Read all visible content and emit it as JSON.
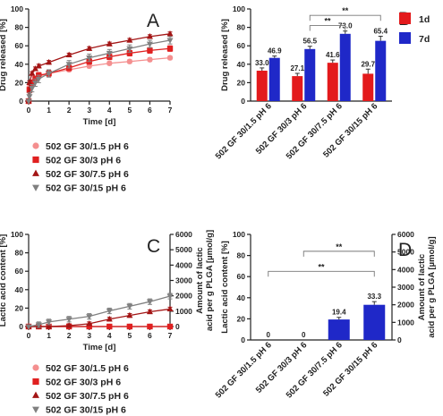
{
  "colors": {
    "c1.5": "#f48f8f",
    "c3": "#e02020",
    "c7.5": "#a31515",
    "c15": "#808080",
    "bar1d": "#e31a1c",
    "bar7d": "#1f28c8"
  },
  "legend_bottom_left": [
    {
      "label": "502 GF 30/1.5 pH 6",
      "marker": "circle",
      "color": "#f48f8f"
    },
    {
      "label": "502 GF 30/3 pH 6",
      "marker": "square",
      "color": "#e02020"
    },
    {
      "label": "502 GF 30/7.5 pH 6",
      "marker": "triangle-up",
      "color": "#a31515"
    },
    {
      "label": "502 GF 30/15 pH 6",
      "marker": "triangle-down",
      "color": "#808080"
    }
  ],
  "chart_data": [
    {
      "panel": "A",
      "type": "line",
      "xlabel": "Time [d]",
      "ylabel": "Drug released [%]",
      "xlim": [
        0,
        7
      ],
      "ylim": [
        0,
        100
      ],
      "xticks": [
        0,
        1,
        2,
        3,
        4,
        5,
        6,
        7
      ],
      "yticks": [
        0,
        20,
        40,
        60,
        80,
        100
      ],
      "x": [
        0,
        0.04,
        0.17,
        0.33,
        0.5,
        1,
        2,
        3,
        4,
        5,
        6,
        7
      ],
      "series": [
        {
          "name": "502 GF 30/1.5 pH 6",
          "key": "c1.5",
          "marker": "circle",
          "values": [
            0,
            15,
            20,
            24,
            27,
            30,
            34,
            38,
            41,
            43,
            45,
            47
          ],
          "err": 2
        },
        {
          "name": "502 GF 30/3 pH 6",
          "key": "c3",
          "marker": "square",
          "values": [
            0,
            12,
            20,
            24,
            28,
            30,
            36,
            43,
            48,
            52,
            55,
            57
          ],
          "err": 3
        },
        {
          "name": "502 GF 30/7.5 pH 6",
          "key": "c7.5",
          "marker": "triangle-up",
          "values": [
            0,
            20,
            30,
            35,
            38,
            42,
            50,
            57,
            62,
            66,
            70,
            73
          ],
          "err": 2
        },
        {
          "name": "502 GF 30/15 pH 6",
          "key": "c15",
          "marker": "triangle-down",
          "values": [
            0,
            5,
            14,
            20,
            24,
            30,
            40,
            47,
            52,
            57,
            62,
            66
          ],
          "err": 4
        }
      ]
    },
    {
      "panel": "B",
      "type": "bar",
      "ylabel": "Drug released [%]",
      "ylim": [
        0,
        100
      ],
      "yticks": [
        0,
        20,
        40,
        60,
        80,
        100
      ],
      "categories": [
        "502 GF 30/1.5 pH 6",
        "502 GF 30/3 pH 6",
        "502 GF 30/7.5 pH 6",
        "502 GF 30/15 pH 6"
      ],
      "series": [
        {
          "name": "1d",
          "key": "bar1d",
          "values": [
            33.0,
            27.1,
            41.6,
            29.7
          ],
          "err": [
            3,
            3,
            3,
            5
          ],
          "labels": [
            "33.0",
            "27.1",
            "41.6",
            "29.7"
          ]
        },
        {
          "name": "7d",
          "key": "bar7d",
          "values": [
            46.9,
            56.5,
            73.0,
            65.4
          ],
          "err": [
            2,
            3,
            3,
            5
          ],
          "labels": [
            "46.9",
            "56.5",
            "73.0",
            "65.4"
          ]
        }
      ],
      "significance": [
        {
          "from": 1,
          "to": 3,
          "label": "**",
          "y": 93
        },
        {
          "from": 1,
          "to": 2,
          "label": "**",
          "y": 82
        }
      ],
      "legend_position": "top-right"
    },
    {
      "panel": "C",
      "type": "line",
      "xlabel": "Time [d]",
      "ylabel": "Lactic acid content [%]",
      "y2label": "Amount of lactic acid per g PLGA [µmol/g]",
      "xlim": [
        0,
        7
      ],
      "ylim": [
        0,
        100
      ],
      "y2lim": [
        0,
        6000
      ],
      "xticks": [
        0,
        1,
        2,
        3,
        4,
        5,
        6,
        7
      ],
      "yticks": [
        0,
        20,
        40,
        60,
        80,
        100
      ],
      "y2ticks": [
        0,
        1000,
        2000,
        3000,
        4000,
        5000,
        6000
      ],
      "x": [
        0,
        0.5,
        1,
        2,
        3,
        4,
        5,
        6,
        7
      ],
      "series": [
        {
          "name": "502 GF 30/1.5 pH 6",
          "key": "c1.5",
          "marker": "circle",
          "values": [
            0,
            0,
            0,
            0,
            0,
            0,
            0,
            0,
            0
          ],
          "err": 0
        },
        {
          "name": "502 GF 30/3 pH 6",
          "key": "c3",
          "marker": "square",
          "values": [
            0,
            0,
            0,
            0,
            0,
            0,
            0,
            0,
            0
          ],
          "err": 0
        },
        {
          "name": "502 GF 30/7.5 pH 6",
          "key": "c7.5",
          "marker": "triangle-up",
          "values": [
            0,
            0,
            0,
            1,
            3,
            8,
            12,
            16,
            19
          ],
          "err": 2
        },
        {
          "name": "502 GF 30/15 pH 6",
          "key": "c15",
          "marker": "triangle-down",
          "values": [
            0,
            2,
            5,
            8,
            11,
            17,
            22,
            27,
            33
          ],
          "err": 3
        }
      ]
    },
    {
      "panel": "D",
      "type": "bar",
      "ylabel": "Lactic acid content [%]",
      "y2label": "Amount of lactic acid per g PLGA [µmol/g]",
      "ylim": [
        0,
        100
      ],
      "y2lim": [
        0,
        6000
      ],
      "yticks": [
        0,
        20,
        40,
        60,
        80,
        100
      ],
      "y2ticks": [
        0,
        1000,
        2000,
        3000,
        4000,
        5000,
        6000
      ],
      "categories": [
        "502 GF 30/1.5 pH 6",
        "502 GF 30/3 pH 6",
        "502 GF 30/7.5 pH 6",
        "502 GF 30/15 pH 6"
      ],
      "series": [
        {
          "name": "7d",
          "key": "bar7d",
          "values": [
            0,
            0,
            19.4,
            33.3
          ],
          "err": [
            0,
            0,
            2,
            3
          ],
          "labels": [
            "0",
            "0",
            "19.4",
            "33.3"
          ]
        }
      ],
      "significance": [
        {
          "from": 0,
          "to": 3,
          "label": "**",
          "y": 65
        },
        {
          "from": 1,
          "to": 3,
          "label": "**",
          "y": 84
        }
      ]
    }
  ]
}
